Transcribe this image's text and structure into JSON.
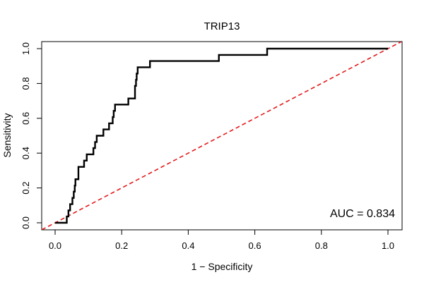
{
  "chart_data": {
    "type": "line",
    "title": "TRIP13",
    "xlabel": "1 − Specificity",
    "ylabel": "Sensitivity",
    "xlim": [
      0,
      1
    ],
    "ylim": [
      0,
      1
    ],
    "xticks": [
      0.0,
      0.2,
      0.4,
      0.6,
      0.8,
      1.0
    ],
    "yticks": [
      0.0,
      0.2,
      0.4,
      0.6,
      0.8,
      1.0
    ],
    "xtick_labels": [
      "0.0",
      "0.2",
      "0.4",
      "0.6",
      "0.8",
      "1.0"
    ],
    "ytick_labels": [
      "0.0",
      "0.2",
      "0.4",
      "0.6",
      "0.8",
      "1.0"
    ],
    "grid": false,
    "annotation": "AUC = 0.834",
    "annotation_position": "bottom-right",
    "series": [
      {
        "style": "solid",
        "color": "#000000",
        "points": [
          [
            0.0,
            0.0
          ],
          [
            0.035,
            0.0
          ],
          [
            0.035,
            0.036
          ],
          [
            0.04,
            0.036
          ],
          [
            0.04,
            0.071
          ],
          [
            0.045,
            0.071
          ],
          [
            0.045,
            0.107
          ],
          [
            0.052,
            0.107
          ],
          [
            0.052,
            0.143
          ],
          [
            0.056,
            0.143
          ],
          [
            0.056,
            0.179
          ],
          [
            0.059,
            0.179
          ],
          [
            0.059,
            0.214
          ],
          [
            0.061,
            0.214
          ],
          [
            0.061,
            0.25
          ],
          [
            0.07,
            0.25
          ],
          [
            0.07,
            0.321
          ],
          [
            0.087,
            0.321
          ],
          [
            0.087,
            0.357
          ],
          [
            0.095,
            0.357
          ],
          [
            0.095,
            0.393
          ],
          [
            0.115,
            0.393
          ],
          [
            0.115,
            0.429
          ],
          [
            0.12,
            0.429
          ],
          [
            0.12,
            0.464
          ],
          [
            0.125,
            0.464
          ],
          [
            0.125,
            0.5
          ],
          [
            0.145,
            0.5
          ],
          [
            0.145,
            0.536
          ],
          [
            0.162,
            0.536
          ],
          [
            0.162,
            0.571
          ],
          [
            0.173,
            0.571
          ],
          [
            0.173,
            0.607
          ],
          [
            0.176,
            0.607
          ],
          [
            0.176,
            0.643
          ],
          [
            0.18,
            0.643
          ],
          [
            0.18,
            0.679
          ],
          [
            0.22,
            0.679
          ],
          [
            0.22,
            0.714
          ],
          [
            0.24,
            0.714
          ],
          [
            0.24,
            0.786
          ],
          [
            0.243,
            0.786
          ],
          [
            0.243,
            0.821
          ],
          [
            0.245,
            0.821
          ],
          [
            0.245,
            0.857
          ],
          [
            0.248,
            0.857
          ],
          [
            0.248,
            0.893
          ],
          [
            0.285,
            0.893
          ],
          [
            0.285,
            0.929
          ],
          [
            0.492,
            0.929
          ],
          [
            0.492,
            0.964
          ],
          [
            0.637,
            0.964
          ],
          [
            0.637,
            1.0
          ],
          [
            1.0,
            1.0
          ]
        ]
      },
      {
        "style": "dashed",
        "color": "#e31a1c",
        "points": [
          [
            -0.04,
            -0.04
          ],
          [
            1.04,
            1.04
          ]
        ]
      }
    ]
  }
}
